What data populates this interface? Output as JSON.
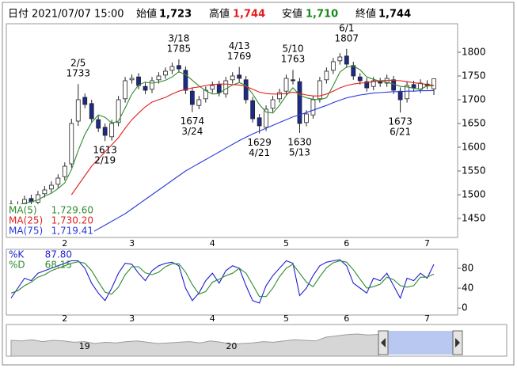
{
  "header": {
    "date_label": "日付",
    "date": "2021/07/07 15:00",
    "open_label": "始値",
    "open": "1,723",
    "high_label": "高値",
    "high": "1,744",
    "low_label": "安値",
    "low": "1,710",
    "close_label": "終値",
    "close": "1,744"
  },
  "chart_data": [
    {
      "type": "candlestick",
      "categories": [
        null,
        null,
        null,
        null,
        null,
        null,
        null,
        null,
        "2",
        null,
        null,
        null,
        null,
        null,
        null,
        null,
        null,
        null,
        "3",
        null,
        null,
        null,
        null,
        null,
        null,
        null,
        null,
        null,
        null,
        null,
        "4",
        null,
        null,
        null,
        null,
        null,
        null,
        null,
        null,
        null,
        null,
        "5",
        null,
        null,
        null,
        null,
        null,
        null,
        null,
        null,
        "6",
        null,
        null,
        null,
        null,
        null,
        null,
        null,
        null,
        null,
        null,
        null,
        "7",
        null
      ],
      "open": [
        1480,
        1468,
        1480,
        1492,
        1484,
        1502,
        1512,
        1522,
        1538,
        1565,
        1655,
        1705,
        1692,
        1658,
        1642,
        1622,
        1652,
        1702,
        1742,
        1748,
        1728,
        1722,
        1742,
        1752,
        1762,
        1772,
        1762,
        1718,
        1688,
        1702,
        1722,
        1732,
        1712,
        1742,
        1752,
        1742,
        1698,
        1662,
        1642,
        1682,
        1702,
        1718,
        1742,
        1738,
        1652,
        1668,
        1702,
        1742,
        1762,
        1782,
        1792,
        1772,
        1748,
        1738,
        1728,
        1738,
        1735,
        1742,
        1718,
        1702,
        1732,
        1722,
        1733,
        1723
      ],
      "high": [
        1488,
        1486,
        1498,
        1500,
        1508,
        1518,
        1528,
        1543,
        1568,
        1660,
        1733,
        1713,
        1700,
        1666,
        1650,
        1658,
        1708,
        1748,
        1753,
        1756,
        1736,
        1748,
        1758,
        1768,
        1778,
        1785,
        1770,
        1726,
        1708,
        1728,
        1738,
        1740,
        1748,
        1758,
        1769,
        1750,
        1706,
        1670,
        1688,
        1708,
        1723,
        1753,
        1763,
        1746,
        1678,
        1708,
        1748,
        1768,
        1788,
        1798,
        1807,
        1780,
        1756,
        1746,
        1748,
        1746,
        1753,
        1750,
        1726,
        1738,
        1740,
        1743,
        1741,
        1744
      ],
      "low": [
        1462,
        1460,
        1472,
        1477,
        1476,
        1494,
        1504,
        1514,
        1530,
        1557,
        1645,
        1682,
        1652,
        1632,
        1613,
        1614,
        1644,
        1694,
        1734,
        1722,
        1712,
        1714,
        1734,
        1744,
        1754,
        1757,
        1712,
        1674,
        1680,
        1694,
        1714,
        1707,
        1704,
        1734,
        1737,
        1692,
        1652,
        1629,
        1634,
        1674,
        1694,
        1710,
        1732,
        1630,
        1644,
        1660,
        1694,
        1734,
        1754,
        1774,
        1767,
        1742,
        1732,
        1717,
        1720,
        1727,
        1727,
        1712,
        1673,
        1694,
        1717,
        1714,
        1722,
        1710
      ],
      "close": [
        1470,
        1478,
        1490,
        1485,
        1500,
        1510,
        1520,
        1535,
        1560,
        1650,
        1700,
        1690,
        1660,
        1640,
        1625,
        1650,
        1700,
        1740,
        1745,
        1730,
        1720,
        1740,
        1750,
        1760,
        1770,
        1765,
        1720,
        1690,
        1700,
        1720,
        1730,
        1715,
        1740,
        1750,
        1745,
        1700,
        1660,
        1645,
        1680,
        1700,
        1715,
        1745,
        1740,
        1650,
        1670,
        1700,
        1740,
        1760,
        1780,
        1790,
        1775,
        1750,
        1740,
        1725,
        1740,
        1735,
        1745,
        1720,
        1700,
        1730,
        1725,
        1735,
        1730,
        1744
      ],
      "up_color": "#ffffff",
      "down_color": "#1c2a8c",
      "series": [
        {
          "name": "MA(5)",
          "color": "#2e8b2e",
          "last_label": "1,729.60",
          "values": [
            1475,
            1478,
            1482,
            1485,
            1489,
            1497,
            1503,
            1513,
            1525,
            1553,
            1593,
            1627,
            1652,
            1668,
            1663,
            1651,
            1655,
            1683,
            1712,
            1731,
            1737,
            1735,
            1737,
            1741,
            1748,
            1759,
            1753,
            1741,
            1729,
            1719,
            1712,
            1713,
            1723,
            1731,
            1736,
            1730,
            1712,
            1690,
            1674,
            1672,
            1688,
            1709,
            1725,
            1710,
            1704,
            1701,
            1700,
            1704,
            1730,
            1758,
            1769,
            1771,
            1763,
            1748,
            1743,
            1739,
            1737,
            1733,
            1728,
            1727,
            1724,
            1722,
            1729,
            1729.6
          ]
        },
        {
          "name": "MA(25)",
          "color": "#e02020",
          "last_label": "1,730.20",
          "values": [
            null,
            null,
            null,
            null,
            null,
            null,
            null,
            null,
            null,
            1500,
            1520,
            1540,
            1560,
            1575,
            1590,
            1605,
            1620,
            1640,
            1658,
            1672,
            1685,
            1695,
            1700,
            1705,
            1712,
            1718,
            1722,
            1725,
            1727,
            1730,
            1732,
            1733,
            1733,
            1732,
            1731,
            1728,
            1722,
            1716,
            1713,
            1712,
            1712,
            1713,
            1716,
            1713,
            1710,
            1708,
            1708,
            1712,
            1718,
            1725,
            1730,
            1733,
            1735,
            1736,
            1738,
            1740,
            1741,
            1741,
            1740,
            1738,
            1736,
            1734,
            1732,
            1730.2
          ]
        },
        {
          "name": "MA(75)",
          "color": "#2a3adc",
          "last_label": "1,719.41",
          "values": [
            null,
            null,
            null,
            null,
            null,
            null,
            null,
            null,
            null,
            null,
            null,
            null,
            1420,
            1428,
            1436,
            1444,
            1452,
            1460,
            1470,
            1480,
            1490,
            1500,
            1510,
            1520,
            1530,
            1540,
            1550,
            1558,
            1566,
            1574,
            1582,
            1590,
            1598,
            1606,
            1614,
            1621,
            1628,
            1634,
            1640,
            1646,
            1652,
            1658,
            1664,
            1668,
            1673,
            1678,
            1683,
            1688,
            1694,
            1699,
            1704,
            1707,
            1710,
            1712,
            1714,
            1715,
            1716,
            1717,
            1717,
            1718,
            1718,
            1719,
            1719,
            1719.41
          ]
        }
      ],
      "annotations": [
        {
          "date": "2/5",
          "price": 1733
        },
        {
          "date": "3/18",
          "price": 1785
        },
        {
          "date": "4/13",
          "price": 1769
        },
        {
          "date": "5/10",
          "price": 1763
        },
        {
          "date": "6/1",
          "price": 1807
        },
        {
          "date": "2/19",
          "price": 1613
        },
        {
          "date": "3/24",
          "price": 1674
        },
        {
          "date": "4/21",
          "price": 1629
        },
        {
          "date": "5/13",
          "price": 1630
        },
        {
          "date": "6/21",
          "price": 1673
        }
      ],
      "ylim": [
        1410,
        1860
      ],
      "yticks": [
        1450,
        1500,
        1550,
        1600,
        1650,
        1700,
        1750,
        1800
      ]
    },
    {
      "type": "line",
      "categories": [
        null,
        null,
        null,
        null,
        null,
        null,
        null,
        null,
        "2",
        null,
        null,
        null,
        null,
        null,
        null,
        null,
        null,
        null,
        "3",
        null,
        null,
        null,
        null,
        null,
        null,
        null,
        null,
        null,
        null,
        null,
        "4",
        null,
        null,
        null,
        null,
        null,
        null,
        null,
        null,
        null,
        null,
        "5",
        null,
        null,
        null,
        null,
        null,
        null,
        null,
        null,
        "6",
        null,
        null,
        null,
        null,
        null,
        null,
        null,
        null,
        null,
        null,
        null,
        "7",
        null
      ],
      "series": [
        {
          "name": "%K",
          "color": "#1f1fd0",
          "last_label": "87.80",
          "values": [
            20,
            40,
            60,
            55,
            70,
            75,
            80,
            85,
            90,
            95,
            95,
            80,
            50,
            30,
            15,
            40,
            70,
            90,
            88,
            70,
            55,
            75,
            85,
            90,
            92,
            85,
            40,
            15,
            30,
            55,
            70,
            50,
            75,
            85,
            80,
            45,
            15,
            10,
            45,
            65,
            80,
            95,
            90,
            25,
            40,
            65,
            85,
            92,
            95,
            97,
            85,
            50,
            40,
            30,
            60,
            55,
            70,
            45,
            20,
            60,
            55,
            70,
            60,
            87.8
          ]
        },
        {
          "name": "%D",
          "color": "#2e8b2e",
          "last_label": "68.15",
          "values": [
            30,
            35,
            45,
            52,
            62,
            67,
            75,
            80,
            85,
            90,
            93,
            90,
            75,
            53,
            32,
            28,
            42,
            67,
            83,
            83,
            71,
            67,
            72,
            83,
            89,
            89,
            72,
            47,
            28,
            33,
            52,
            58,
            65,
            70,
            80,
            70,
            47,
            23,
            23,
            40,
            63,
            80,
            88,
            70,
            52,
            43,
            63,
            81,
            91,
            95,
            92,
            77,
            58,
            40,
            43,
            48,
            62,
            57,
            45,
            42,
            45,
            62,
            62,
            68.15
          ]
        }
      ],
      "ylim": [
        -14,
        118
      ],
      "yticks": [
        0,
        40,
        80
      ]
    },
    {
      "type": "area",
      "categories": [
        null,
        null,
        null,
        null,
        null,
        null,
        null,
        "19",
        null,
        null,
        null,
        null,
        null,
        null,
        null,
        null,
        null,
        null,
        null,
        null,
        null,
        "20",
        null,
        null,
        null,
        null,
        null,
        null,
        null,
        null,
        null,
        null,
        null,
        null,
        null,
        null
      ],
      "values": [
        1650,
        1640,
        1660,
        1630,
        1650,
        1640,
        1620,
        1630,
        1600,
        1620,
        1610,
        1630,
        1640,
        1620,
        1600,
        1610,
        1620,
        1630,
        1610,
        1640,
        1620,
        1590,
        1600,
        1610,
        1630,
        1620,
        1640,
        1660,
        1650,
        1640,
        1700,
        1720,
        1740,
        1750,
        1735,
        1744
      ],
      "color": "#9c9c9c",
      "ylim": [
        1400,
        1900
      ]
    }
  ]
}
